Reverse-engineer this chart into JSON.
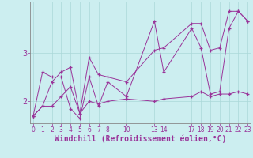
{
  "xlabel": "Windchill (Refroidissement éolien,°C)",
  "bg_color": "#cceef0",
  "line_color": "#993399",
  "grid_color": "#aad8d8",
  "x_ticks": [
    0,
    1,
    2,
    3,
    4,
    5,
    6,
    7,
    8,
    10,
    13,
    14,
    17,
    18,
    19,
    20,
    21,
    22,
    23
  ],
  "series1_x": [
    0,
    1,
    2,
    3,
    4,
    5,
    6,
    7,
    8,
    10,
    13,
    14,
    17,
    18,
    19,
    20,
    21,
    22,
    23
  ],
  "series1_y": [
    1.7,
    2.6,
    2.5,
    2.5,
    1.85,
    1.65,
    2.5,
    1.9,
    2.4,
    2.1,
    3.65,
    2.6,
    3.5,
    3.1,
    2.15,
    2.2,
    3.5,
    3.85,
    3.65
  ],
  "series2_x": [
    0,
    1,
    2,
    3,
    4,
    5,
    6,
    7,
    8,
    10,
    13,
    14,
    17,
    18,
    19,
    20,
    21,
    22,
    23
  ],
  "series2_y": [
    1.7,
    1.9,
    2.4,
    2.6,
    2.7,
    1.75,
    2.9,
    2.55,
    2.5,
    2.4,
    3.05,
    3.1,
    3.6,
    3.6,
    3.05,
    3.1,
    3.85,
    3.85,
    3.65
  ],
  "series3_x": [
    0,
    1,
    2,
    3,
    4,
    5,
    6,
    7,
    8,
    10,
    13,
    14,
    17,
    18,
    19,
    20,
    21,
    22,
    23
  ],
  "series3_y": [
    1.7,
    1.9,
    1.9,
    2.1,
    2.3,
    1.75,
    2.0,
    1.95,
    2.0,
    2.05,
    2.0,
    2.05,
    2.1,
    2.2,
    2.1,
    2.15,
    2.15,
    2.2,
    2.15
  ],
  "ylim": [
    1.55,
    4.05
  ],
  "xlim": [
    -0.3,
    23.3
  ],
  "xlabel_fontsize": 7,
  "tick_fontsize": 5.5
}
